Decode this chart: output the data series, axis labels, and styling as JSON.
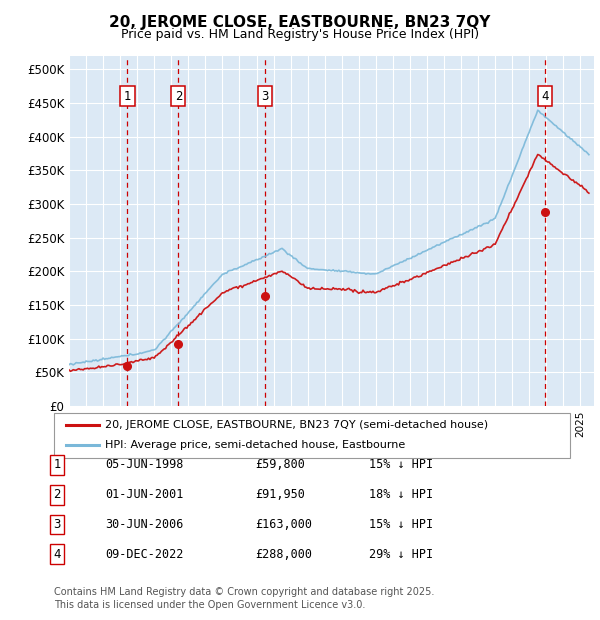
{
  "title": "20, JEROME CLOSE, EASTBOURNE, BN23 7QY",
  "subtitle": "Price paid vs. HM Land Registry's House Price Index (HPI)",
  "yticks": [
    0,
    50000,
    100000,
    150000,
    200000,
    250000,
    300000,
    350000,
    400000,
    450000,
    500000
  ],
  "ytick_labels": [
    "£0",
    "£50K",
    "£100K",
    "£150K",
    "£200K",
    "£250K",
    "£300K",
    "£350K",
    "£400K",
    "£450K",
    "£500K"
  ],
  "xlim_start": 1995.0,
  "xlim_end": 2025.8,
  "ylim": [
    0,
    520000
  ],
  "hpi_color": "#7ab8d9",
  "price_color": "#cc1111",
  "vline_color": "#cc0000",
  "bg_color": "#dce9f5",
  "grid_color": "#ffffff",
  "sale_points": [
    {
      "date_num": 1998.43,
      "price": 59800,
      "label": "1"
    },
    {
      "date_num": 2001.42,
      "price": 91950,
      "label": "2"
    },
    {
      "date_num": 2006.5,
      "price": 163000,
      "label": "3"
    },
    {
      "date_num": 2022.94,
      "price": 288000,
      "label": "4"
    }
  ],
  "legend_entries": [
    {
      "label": "20, JEROME CLOSE, EASTBOURNE, BN23 7QY (semi-detached house)",
      "color": "#cc1111"
    },
    {
      "label": "HPI: Average price, semi-detached house, Eastbourne",
      "color": "#7ab8d9"
    }
  ],
  "table_data": [
    {
      "num": "1",
      "date": "05-JUN-1998",
      "price": "£59,800",
      "note": "15% ↓ HPI"
    },
    {
      "num": "2",
      "date": "01-JUN-2001",
      "price": "£91,950",
      "note": "18% ↓ HPI"
    },
    {
      "num": "3",
      "date": "30-JUN-2006",
      "price": "£163,000",
      "note": "15% ↓ HPI"
    },
    {
      "num": "4",
      "date": "09-DEC-2022",
      "price": "£288,000",
      "note": "29% ↓ HPI"
    }
  ],
  "footer": "Contains HM Land Registry data © Crown copyright and database right 2025.\nThis data is licensed under the Open Government Licence v3.0."
}
